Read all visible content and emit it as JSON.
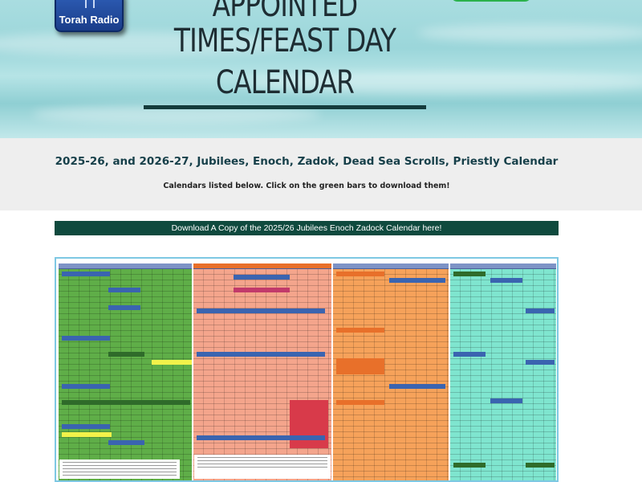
{
  "logo": {
    "text": "Torah Radio",
    "icon": "menorah-icon"
  },
  "hero": {
    "title_line1": "APPOINTED",
    "title_line2": "TIMES/FEAST DAY",
    "title_line3": "CALENDAR"
  },
  "intro": {
    "subtitle": "2025-26, and 2026-27, Jubilees, Enoch, Zadok, Dead Sea Scrolls, Priestly Calendar",
    "instructions": "Calendars listed below. Click on the green bars to download them!"
  },
  "download": {
    "bar_label": "Download A Copy of the 2025/26 Jubilees Enoch Zadock Calendar here!"
  },
  "calendar_image": {
    "description_icon": "calendar-image",
    "colors": {
      "green": "#5fae48",
      "salmon": "#f4a58c",
      "orange": "#f6a25a",
      "teal": "#7fe5cf",
      "header": "#7d93c6",
      "highlight_red": "#d83a4a",
      "highlight_blue": "#3a64b0",
      "highlight_yellow": "#f2f24a",
      "border": "#7ec8e3"
    }
  }
}
